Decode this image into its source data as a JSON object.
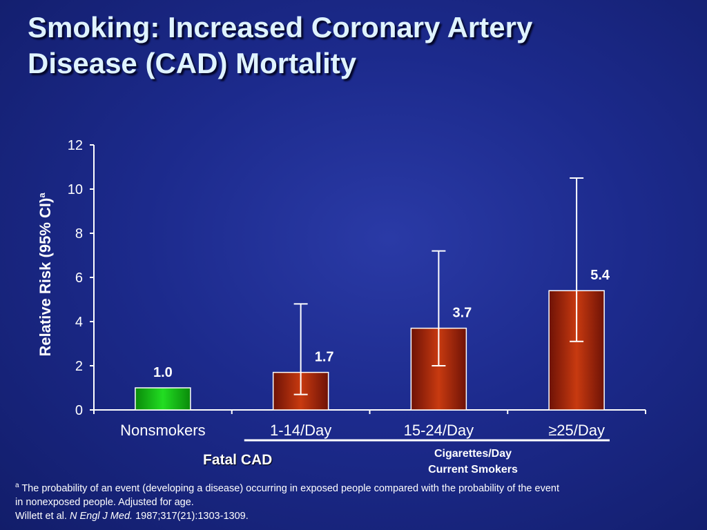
{
  "slide": {
    "title_line1": "Smoking: Increased Coronary Artery",
    "title_line2": "Disease (CAD) Mortality"
  },
  "chart_data": {
    "type": "bar",
    "categories": [
      "Nonsmokers",
      "1-14/Day",
      "15-24/Day",
      "≥25/Day"
    ],
    "values": [
      1.0,
      1.7,
      3.7,
      5.4
    ],
    "value_labels": [
      "1.0",
      "1.7",
      "3.7",
      "5.4"
    ],
    "ci_low": [
      null,
      0.7,
      2.0,
      3.1
    ],
    "ci_high": [
      null,
      4.8,
      7.2,
      10.5
    ],
    "bar_colors": [
      "#22dd22",
      "#c83a10",
      "#c83a10",
      "#c83a10"
    ],
    "ylabel": "Relative Risk (95% CI)",
    "ylabel_sup": "a",
    "ylim": [
      0,
      12
    ],
    "yticks": [
      0,
      2,
      4,
      6,
      8,
      10,
      12
    ],
    "grid": false,
    "group_labels": {
      "fatal": "Fatal CAD",
      "cig_line1": "Cigarettes/Day",
      "cig_line2": "Current Smokers"
    }
  },
  "footnote": {
    "sup": "a",
    "line1": " The probability of an event (developing a disease) occurring in exposed people compared with the probability of the event",
    "line2": "in nonexposed people. Adjusted for age.",
    "ref_author": "Willett et al. ",
    "ref_journal": "N Engl J Med.",
    "ref_rest": " 1987;317(21):1303-1309."
  },
  "colors": {
    "background": "#1c2a8c",
    "title": "#dff3ff",
    "nonsmoker_bar": "#22dd22",
    "smoker_bar": "#c83a10",
    "axis": "#ffffff"
  }
}
